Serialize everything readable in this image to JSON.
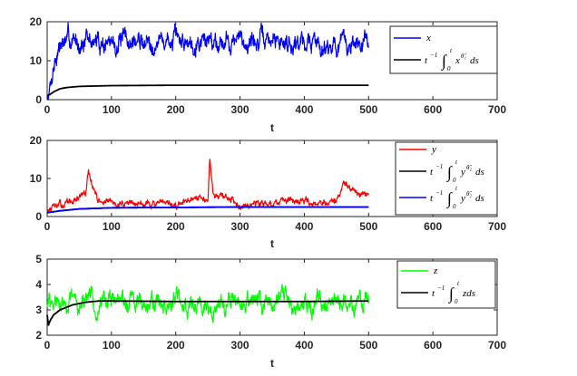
{
  "chart_data": [
    {
      "type": "line",
      "panel": "top",
      "xlabel": "t",
      "xlim": [
        0,
        700
      ],
      "ylim": [
        0,
        20
      ],
      "xticks": [
        0,
        100,
        200,
        300,
        400,
        500,
        600,
        700
      ],
      "yticks": [
        0,
        10,
        20
      ],
      "legend": "top-right",
      "series": [
        {
          "name": "x",
          "color": "#0000ff",
          "kind": "noisy",
          "t": [
            0,
            5,
            10,
            15,
            20,
            30,
            50,
            100,
            150,
            200,
            250,
            300,
            350,
            400,
            450,
            500
          ],
          "values": [
            0,
            4,
            9,
            12,
            14,
            15,
            15,
            14.5,
            15,
            15,
            15.5,
            15,
            15,
            15,
            14,
            14
          ]
        },
        {
          "name": "t^-1 ∫0^t x^θ1 ds",
          "color": "#000000",
          "kind": "smooth",
          "t": [
            0,
            5,
            10,
            20,
            30,
            50,
            100,
            200,
            300,
            400,
            500
          ],
          "values": [
            1,
            1.4,
            2,
            2.8,
            3.1,
            3.4,
            3.6,
            3.7,
            3.7,
            3.7,
            3.7
          ]
        }
      ]
    },
    {
      "type": "line",
      "panel": "middle",
      "xlabel": "t",
      "xlim": [
        0,
        700
      ],
      "ylim": [
        0,
        20
      ],
      "xticks": [
        0,
        100,
        200,
        300,
        400,
        500,
        600,
        700
      ],
      "yticks": [
        0,
        10,
        20
      ],
      "legend": "top-right",
      "series": [
        {
          "name": "y",
          "color": "#ff0000",
          "kind": "noisy",
          "t": [
            0,
            20,
            40,
            60,
            64,
            70,
            80,
            100,
            150,
            200,
            250,
            253,
            258,
            300,
            350,
            450,
            460,
            500
          ],
          "values": [
            1.5,
            3,
            4,
            6,
            12,
            8,
            4,
            3.5,
            3.5,
            3,
            5,
            16,
            6,
            3.5,
            3.5,
            4,
            8,
            5
          ]
        },
        {
          "name": "t^-1 ∫0^t y^θ2 ds",
          "color": "#000000",
          "kind": "smooth",
          "t": [
            0,
            20,
            50,
            100,
            200,
            300,
            400,
            500
          ],
          "values": [
            1,
            1.5,
            2,
            2.3,
            2.4,
            2.5,
            2.5,
            2.5
          ]
        },
        {
          "name": "t^-1 ∫0^t y^θ2 ds",
          "color": "#0000ff",
          "kind": "smooth",
          "t": [
            0,
            20,
            50,
            100,
            200,
            300,
            400,
            500
          ],
          "values": [
            1,
            1.5,
            2,
            2.3,
            2.4,
            2.5,
            2.5,
            2.5
          ]
        }
      ]
    },
    {
      "type": "line",
      "panel": "bottom",
      "xlabel": "t",
      "xlim": [
        0,
        700
      ],
      "ylim": [
        2,
        5
      ],
      "xticks": [
        0,
        100,
        200,
        300,
        400,
        500,
        600,
        700
      ],
      "yticks": [
        2,
        3,
        4,
        5
      ],
      "legend": "top-right",
      "series": [
        {
          "name": "z",
          "color": "#00ff00",
          "kind": "noisy",
          "t": [
            0,
            50,
            100,
            200,
            300,
            400,
            500
          ],
          "values": [
            3.2,
            3.3,
            3.3,
            3.3,
            3.3,
            3.3,
            3.3
          ]
        },
        {
          "name": "t^-1 ∫0^t z ds",
          "color": "#000000",
          "kind": "smooth",
          "t": [
            0,
            2,
            5,
            10,
            20,
            40,
            60,
            80,
            100,
            200,
            300,
            400,
            500
          ],
          "values": [
            2.8,
            2.4,
            2.6,
            2.8,
            3.0,
            3.2,
            3.3,
            3.35,
            3.35,
            3.33,
            3.33,
            3.33,
            3.35
          ]
        }
      ]
    }
  ],
  "legend_labels": {
    "x": "x",
    "y": "y",
    "z": "z",
    "prefix": "t",
    "prefix_sup": "−1",
    "int_top": "t",
    "int_bottom": "0",
    "x_integrand": "x",
    "x_sup": "θ̂₁",
    "y_integrand": "y",
    "y_sup": "θ̂₂",
    "z_integrand": "zds",
    "ds": "ds"
  }
}
